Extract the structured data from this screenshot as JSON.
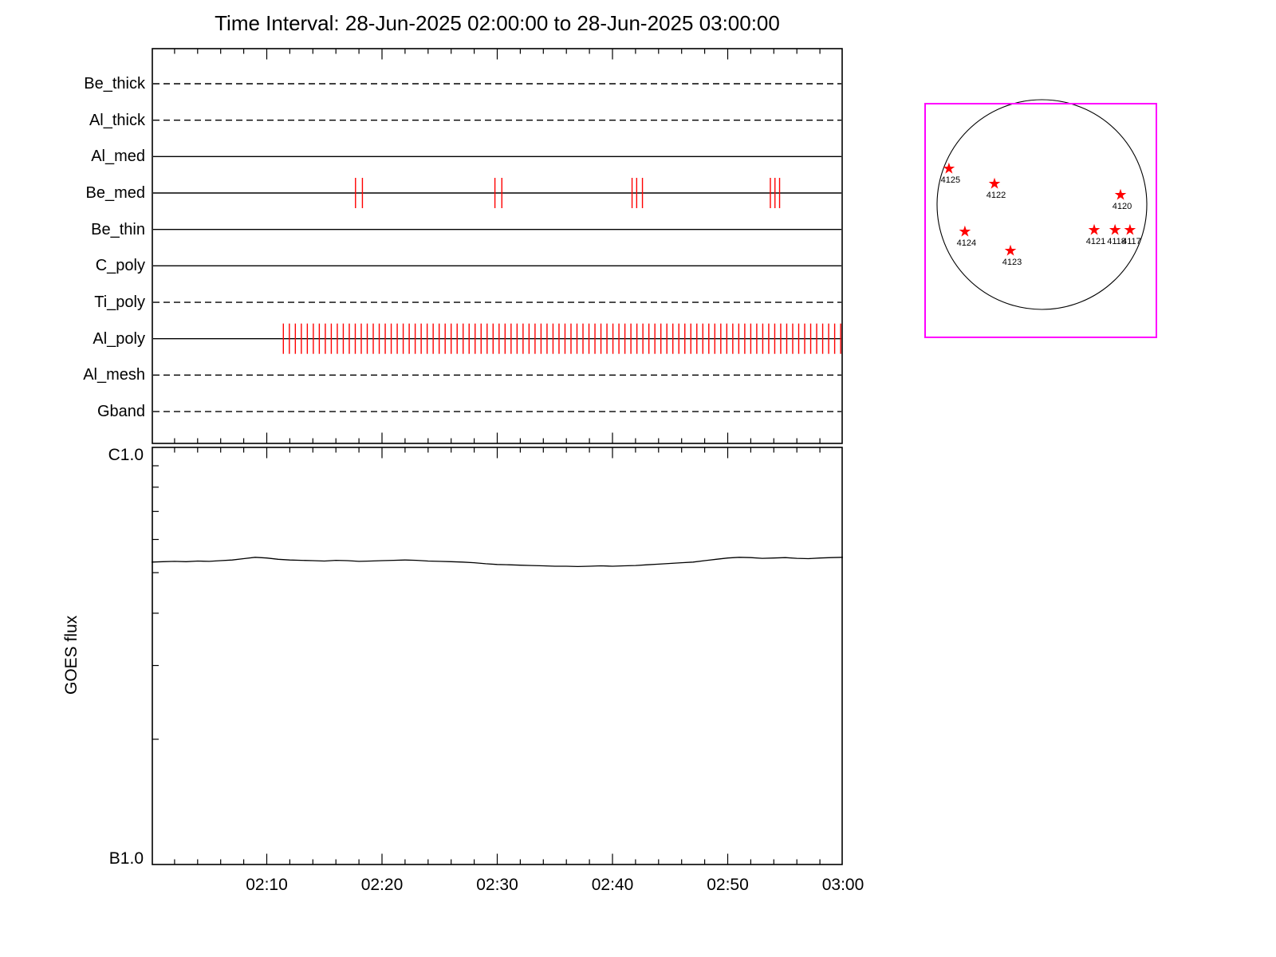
{
  "title": "Time Interval: 28-Jun-2025 02:00:00 to 28-Jun-2025 03:00:00",
  "colors": {
    "background": "#ffffff",
    "axis": "#000000",
    "exposure_tick": "#ff0000",
    "star": "#ff0000",
    "disk_box": "#ff00ff"
  },
  "chart_data": [
    {
      "id": "filter_timeline",
      "type": "timeline",
      "x_axis": {
        "start_time": "02:00",
        "end_time": "03:00",
        "minutes_total": 60,
        "minor_tick_minutes": 2,
        "major_tick_minutes": 10,
        "tick_labels": [
          "02:10",
          "02:20",
          "02:30",
          "02:40",
          "02:50",
          "03:00"
        ],
        "tick_label_minutes": [
          10,
          20,
          30,
          40,
          50,
          60
        ]
      },
      "channels": [
        {
          "name": "Be_thick",
          "line_style": "dashed",
          "exposures_min": []
        },
        {
          "name": "Al_thick",
          "line_style": "dashed",
          "exposures_min": []
        },
        {
          "name": "Al_med",
          "line_style": "solid",
          "exposures_min": []
        },
        {
          "name": "Be_med",
          "line_style": "solid",
          "exposures_min": [
            17.7,
            18.3,
            29.8,
            30.4,
            41.7,
            42.1,
            42.6,
            53.7,
            54.1,
            54.5
          ]
        },
        {
          "name": "Be_thin",
          "line_style": "solid",
          "exposures_min": []
        },
        {
          "name": "C_poly",
          "line_style": "solid",
          "exposures_min": []
        },
        {
          "name": "Ti_poly",
          "line_style": "dashed",
          "exposures_min": []
        },
        {
          "name": "Al_poly",
          "line_style": "solid",
          "exposures_min": [
            11.44,
            11.96,
            12.48,
            13.0,
            13.52,
            14.04,
            14.56,
            15.08,
            15.6,
            16.12,
            16.64,
            17.16,
            17.68,
            18.2,
            18.72,
            19.24,
            19.76,
            20.28,
            20.8,
            21.32,
            21.84,
            22.36,
            22.88,
            23.4,
            23.92,
            24.44,
            24.96,
            25.48,
            26.0,
            26.52,
            27.04,
            27.56,
            28.08,
            28.6,
            29.12,
            29.64,
            30.16,
            30.68,
            31.2,
            31.72,
            32.24,
            32.76,
            33.28,
            33.8,
            34.32,
            34.84,
            35.36,
            35.88,
            36.4,
            36.92,
            37.44,
            37.96,
            38.48,
            39.0,
            39.52,
            40.04,
            40.56,
            41.08,
            41.6,
            42.12,
            42.64,
            43.16,
            43.68,
            44.2,
            44.72,
            45.24,
            45.76,
            46.28,
            46.8,
            47.32,
            47.84,
            48.36,
            48.88,
            49.4,
            49.92,
            50.44,
            50.96,
            51.48,
            52.0,
            52.52,
            53.04,
            53.56,
            54.08,
            54.6,
            55.12,
            55.64,
            56.16,
            56.68,
            57.2,
            57.72,
            58.24,
            58.76,
            59.28,
            59.8
          ]
        },
        {
          "name": "Al_mesh",
          "line_style": "dashed",
          "exposures_min": []
        },
        {
          "name": "Gband",
          "line_style": "dashed",
          "exposures_min": []
        }
      ]
    },
    {
      "id": "goes_flux",
      "type": "line",
      "ylabel": "GOES flux",
      "y_axis": {
        "scale": "log",
        "top_label": "C1.0",
        "bottom_label": "B1.0",
        "top_flux_w_m2": 1e-06,
        "bottom_flux_w_m2": 1e-07,
        "minor_ticks_b_units": [
          2,
          3,
          4,
          5,
          6,
          7,
          8,
          9
        ]
      },
      "x_minutes_span": [
        0,
        60
      ],
      "sample_step_min": 1,
      "flux_b_units": [
        5.3,
        5.31,
        5.32,
        5.31,
        5.33,
        5.32,
        5.34,
        5.36,
        5.4,
        5.44,
        5.42,
        5.38,
        5.36,
        5.35,
        5.34,
        5.33,
        5.35,
        5.34,
        5.32,
        5.33,
        5.34,
        5.35,
        5.36,
        5.35,
        5.33,
        5.32,
        5.31,
        5.3,
        5.28,
        5.25,
        5.23,
        5.22,
        5.21,
        5.2,
        5.19,
        5.18,
        5.18,
        5.17,
        5.18,
        5.19,
        5.18,
        5.19,
        5.2,
        5.22,
        5.24,
        5.26,
        5.28,
        5.3,
        5.34,
        5.38,
        5.42,
        5.44,
        5.43,
        5.41,
        5.42,
        5.43,
        5.41,
        5.4,
        5.42,
        5.43,
        5.44
      ]
    },
    {
      "id": "solar_disk_locator",
      "type": "scatter",
      "marker": "star",
      "active_regions": [
        {
          "noaa": "4125",
          "x_frac": 0.103,
          "y_frac": 0.28
        },
        {
          "noaa": "4122",
          "x_frac": 0.3,
          "y_frac": 0.345
        },
        {
          "noaa": "4120",
          "x_frac": 0.845,
          "y_frac": 0.392
        },
        {
          "noaa": "4124",
          "x_frac": 0.172,
          "y_frac": 0.55
        },
        {
          "noaa": "4121",
          "x_frac": 0.731,
          "y_frac": 0.543
        },
        {
          "noaa": "4118",
          "x_frac": 0.821,
          "y_frac": 0.543
        },
        {
          "noaa": "4117",
          "x_frac": 0.886,
          "y_frac": 0.543
        },
        {
          "noaa": "4123",
          "x_frac": 0.369,
          "y_frac": 0.631
        }
      ]
    }
  ]
}
